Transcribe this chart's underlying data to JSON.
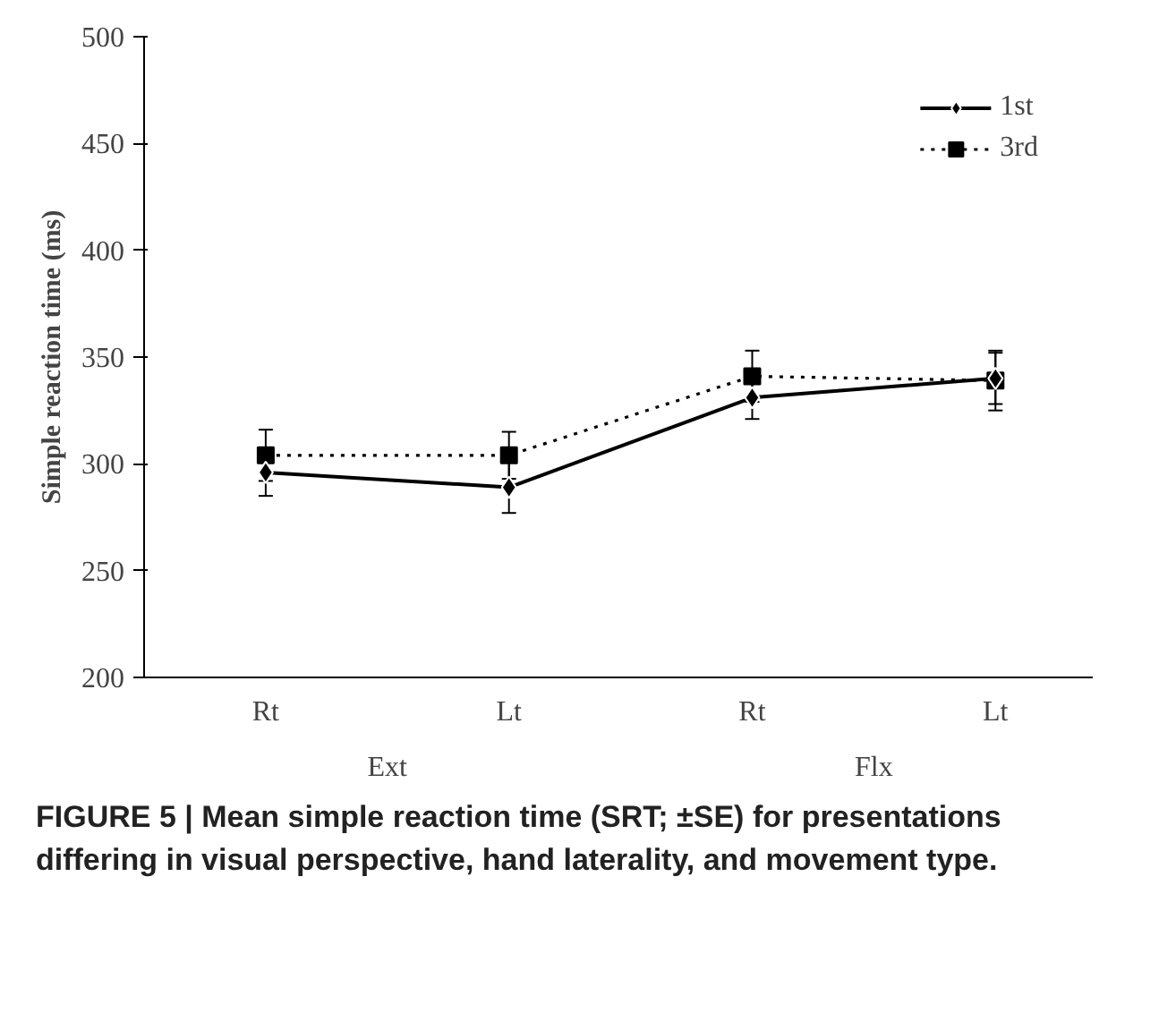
{
  "chart_data": {
    "type": "line",
    "ylabel": "Simple reaction time (ms)",
    "categories": [
      "Rt",
      "Lt",
      "Rt",
      "Lt"
    ],
    "series": [
      {
        "name": "1st",
        "color": "#000000",
        "values": [
          296,
          289,
          331,
          340
        ],
        "errors": [
          11,
          12,
          10,
          12
        ],
        "marker": "diamond",
        "line_style": "solid"
      },
      {
        "name": "3rd",
        "color": "#000000",
        "values": [
          304,
          304,
          341,
          339
        ],
        "errors": [
          12,
          11,
          12,
          14
        ],
        "marker": "square",
        "line_style": "dotted"
      }
    ],
    "ylim": [
      200,
      500
    ],
    "yticks": [
      200,
      250,
      300,
      350,
      400,
      450,
      500
    ],
    "grid": false,
    "legend": "top right",
    "annotations": [
      "Ext",
      "Flx",
      "FIGURE 5 | Mean simple reaction time (SRT; ±SE) for presentations differing in visual perspective, hand laterality, and movement type."
    ]
  }
}
